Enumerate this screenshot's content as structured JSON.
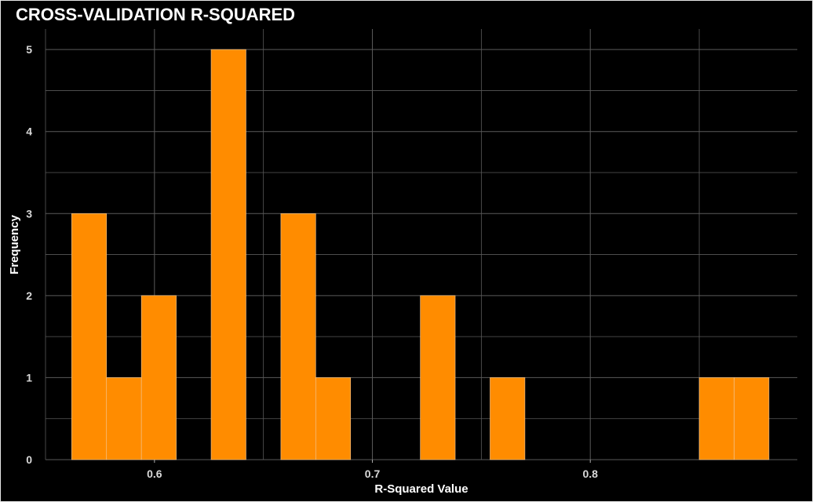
{
  "chart_data": {
    "type": "bar",
    "title": "CROSS-VALIDATION R-SQUARED",
    "xlabel": "R-Squared Value",
    "ylabel": "Frequency",
    "bin_width": 0.016,
    "bins": [
      {
        "x0": 0.562,
        "x1": 0.578,
        "count": 3
      },
      {
        "x0": 0.578,
        "x1": 0.594,
        "count": 1
      },
      {
        "x0": 0.594,
        "x1": 0.61,
        "count": 2
      },
      {
        "x0": 0.61,
        "x1": 0.626,
        "count": 0
      },
      {
        "x0": 0.626,
        "x1": 0.642,
        "count": 5
      },
      {
        "x0": 0.642,
        "x1": 0.658,
        "count": 0
      },
      {
        "x0": 0.658,
        "x1": 0.674,
        "count": 3
      },
      {
        "x0": 0.674,
        "x1": 0.69,
        "count": 1
      },
      {
        "x0": 0.69,
        "x1": 0.706,
        "count": 0
      },
      {
        "x0": 0.706,
        "x1": 0.722,
        "count": 0
      },
      {
        "x0": 0.722,
        "x1": 0.738,
        "count": 2
      },
      {
        "x0": 0.738,
        "x1": 0.754,
        "count": 0
      },
      {
        "x0": 0.754,
        "x1": 0.77,
        "count": 1
      },
      {
        "x0": 0.77,
        "x1": 0.786,
        "count": 0
      },
      {
        "x0": 0.786,
        "x1": 0.802,
        "count": 0
      },
      {
        "x0": 0.802,
        "x1": 0.818,
        "count": 0
      },
      {
        "x0": 0.818,
        "x1": 0.834,
        "count": 0
      },
      {
        "x0": 0.834,
        "x1": 0.85,
        "count": 0
      },
      {
        "x0": 0.85,
        "x1": 0.866,
        "count": 1
      },
      {
        "x0": 0.866,
        "x1": 0.882,
        "count": 1
      }
    ],
    "x_ticks": [
      0.6,
      0.7,
      0.8
    ],
    "x_tick_labels": [
      "0.6",
      "0.7",
      "0.8"
    ],
    "y_ticks": [
      0,
      1,
      2,
      3,
      4,
      5
    ],
    "y_tick_labels": [
      "0",
      "1",
      "2",
      "3",
      "4",
      "5"
    ],
    "xlim": [
      0.55,
      0.895
    ],
    "ylim": [
      0,
      5.25
    ],
    "grid": true,
    "colors": {
      "background": "#000000",
      "bar_fill": "#ff8c00",
      "bar_stroke": "#f2c89a",
      "grid": "#5a5a5a",
      "text": "#ffffff",
      "tick_text": "#d9d9d9"
    }
  }
}
